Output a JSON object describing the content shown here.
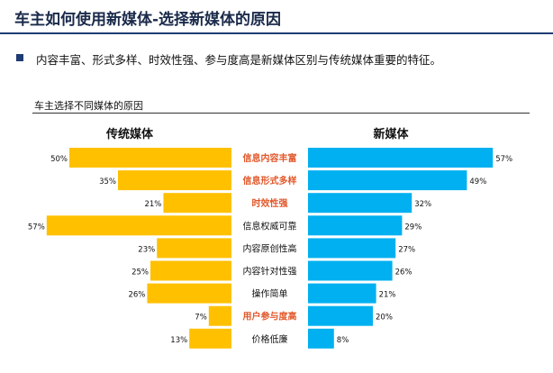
{
  "page": {
    "title": "车主如何使用新媒体-选择新媒体的原因",
    "bullet_text": "内容丰富、形式多样、时效性强、参与度高是新媒体区别与传统媒体重要的特征。",
    "chart_caption": "车主选择不同媒体的原因"
  },
  "colors": {
    "traditional": "#FFC000",
    "new_media": "#00B0F0",
    "highlight_label": "#E2572A",
    "normal_label": "#111111",
    "title_rule": "#1F3B73"
  },
  "chart_data": {
    "type": "bar",
    "orientation": "horizontal-butterfly",
    "categories": [
      "信息内容丰富",
      "信息形式多样",
      "时效性强",
      "信息权威可靠",
      "内容原创性高",
      "内容针对性强",
      "操作简单",
      "用户参与度高",
      "价格低廉"
    ],
    "highlighted_categories": [
      true,
      true,
      true,
      false,
      false,
      false,
      false,
      true,
      false
    ],
    "series": [
      {
        "name": "传统媒体",
        "values": [
          50,
          35,
          21,
          57,
          23,
          25,
          26,
          7,
          13
        ],
        "labels": [
          "50%",
          "35%",
          "21%",
          "57%",
          "23%",
          "25%",
          "26%",
          "7%",
          "13%"
        ]
      },
      {
        "name": "新媒体",
        "values": [
          57,
          49,
          32,
          29,
          27,
          26,
          21,
          20,
          8
        ],
        "labels": [
          "57%",
          "49%",
          "32%",
          "29%",
          "27%",
          "26%",
          "21%",
          "20%",
          "8%"
        ]
      }
    ],
    "unit": "%",
    "grid": false
  }
}
